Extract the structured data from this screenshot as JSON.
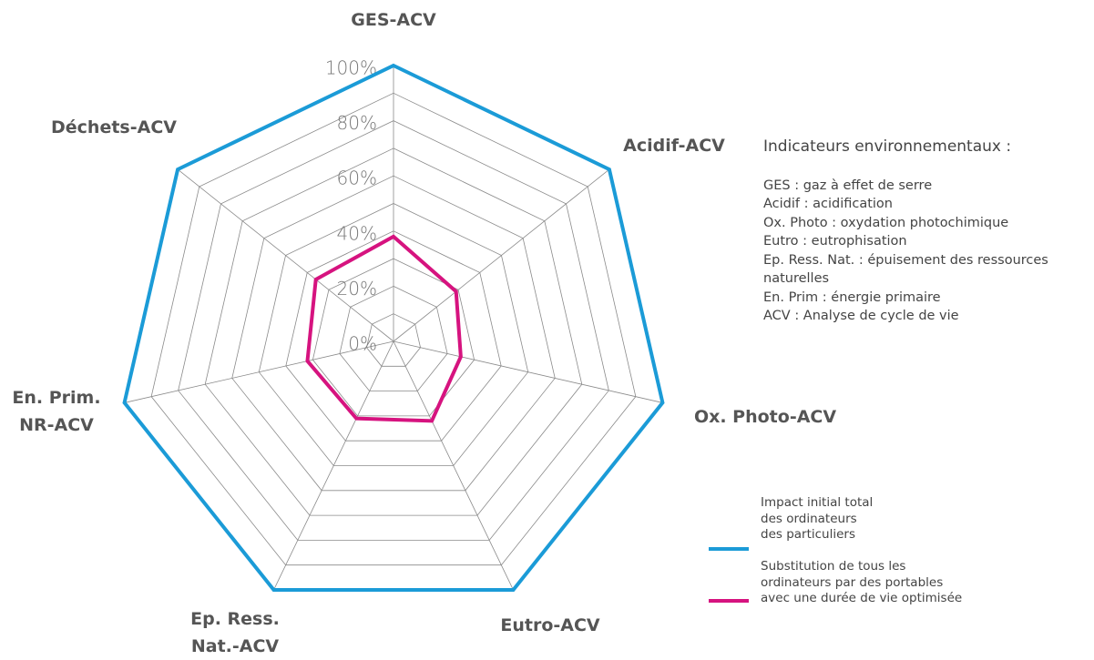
{
  "chart_data": {
    "type": "radar",
    "categories": [
      "GES-ACV",
      "Acidif-ACV",
      "Ox. Photo-ACV",
      "Eutro-ACV",
      "Ep. Ress.\nNat.-ACV",
      "En. Prim.\nNR-ACV",
      "Déchets-ACV"
    ],
    "series": [
      {
        "name": "Impact initial total\ndes ordinateurs\ndes particuliers",
        "color": "#1b9bd7",
        "values": [
          100,
          100,
          100,
          100,
          100,
          100,
          100
        ]
      },
      {
        "name": "Substitution de tous les\nordinateurs par des portables\navec une durée de vie optimisée",
        "color": "#d6137f",
        "values": [
          38,
          29,
          25,
          32,
          31,
          32,
          36
        ]
      }
    ],
    "ylim": [
      0,
      100
    ],
    "yticks": [
      {
        "value": 0,
        "label": "0%"
      },
      {
        "value": 20,
        "label": "20%"
      },
      {
        "value": 40,
        "label": "40%"
      },
      {
        "value": 60,
        "label": "60%"
      },
      {
        "value": 80,
        "label": "80%"
      },
      {
        "value": 100,
        "label": "100%"
      }
    ],
    "minor_grid": [
      10,
      30,
      50,
      70,
      90
    ],
    "grid": true,
    "legend": "lower right",
    "notes": {
      "title": "Indicateurs environnementaux :",
      "lines": [
        "GES : gaz à effet de serre",
        "Acidif : acidification",
        "Ox. Photo : oxydation photochimique",
        "Eutro : eutrophisation",
        "Ep. Ress. Nat. : épuisement des ressources\nnaturelles",
        "En. Prim : énergie primaire",
        "ACV : Analyse de cycle de vie"
      ]
    }
  }
}
